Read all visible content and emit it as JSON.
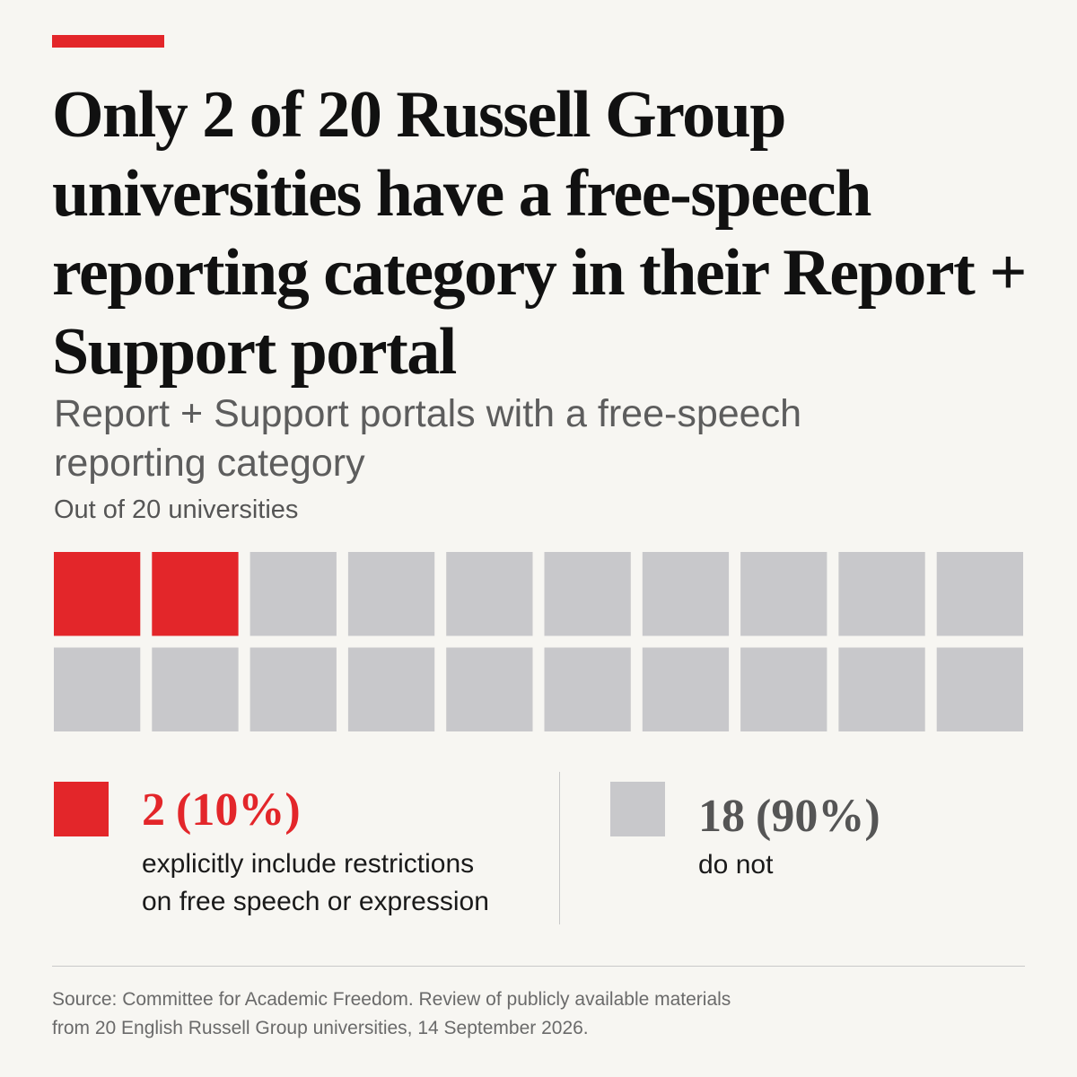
{
  "colors": {
    "accent": "#e3262a",
    "neutral": "#c8c8cb"
  },
  "headline": "Only 2 of 20 Russell Group universities have a free-speech reporting category in their Report + Support portal",
  "subtitle": "Report + Support portals with a free-speech reporting category",
  "unit_note": "Out of 20 universities",
  "chart_data": {
    "type": "waffle",
    "total": 20,
    "rows": 2,
    "columns": 10,
    "series": [
      {
        "name": "explicitly include restrictions on free speech or expression",
        "count": 2,
        "percent": 10,
        "color": "#e3262a"
      },
      {
        "name": "do not",
        "count": 18,
        "percent": 90,
        "color": "#c8c8cb"
      }
    ]
  },
  "legend": {
    "yes": {
      "count": "2",
      "percent": "(10%)",
      "line1": "explicitly include restrictions",
      "line2": "on free speech or expression"
    },
    "no": {
      "count": "18",
      "percent": "(90%)",
      "line1": "do not"
    }
  },
  "source": {
    "line1": "Source: Committee for Academic Freedom. Review of publicly available materials",
    "line2": "from 20 English Russell Group universities, 14 September 2026."
  }
}
